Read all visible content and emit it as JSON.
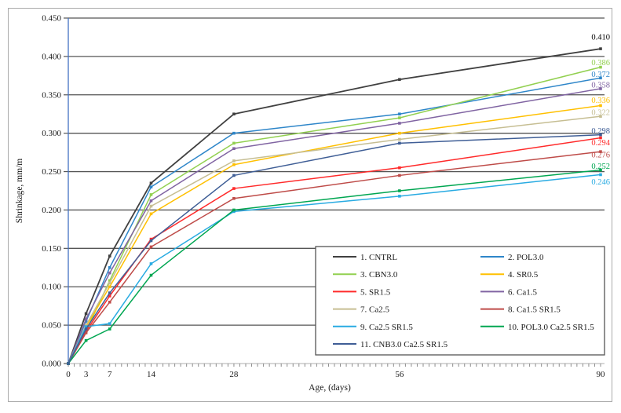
{
  "figure": {
    "description": "Line chart of drying shrinkage versus age for 11 concrete mixtures",
    "colors": {
      "figure_border": "#ABABAB",
      "gridline": "#555555",
      "y_axis_line": "#4472C4",
      "x_axis_line": "#BFBFBF",
      "tick_color": "#8C8C8C",
      "legend_border": "#555555",
      "text": "#1a1a1a"
    }
  },
  "chart_data": {
    "type": "line",
    "title": "",
    "xlabel": "Age, (days)",
    "ylabel": "Shrinkage, mm/m",
    "x": [
      0,
      3,
      7,
      14,
      28,
      56,
      90
    ],
    "xticks": [
      0,
      3,
      7,
      14,
      28,
      56,
      90
    ],
    "xlim": [
      0,
      90
    ],
    "ylim": [
      0.0,
      0.45
    ],
    "ytick_step": 0.05,
    "grid": "horizontal dark-gray gridlines every 0.050",
    "legend_position": "inside lower-right, 2 columns, bordered box",
    "series": [
      {
        "name": "1. CNTRL",
        "color": "#404040",
        "values": [
          0,
          0.065,
          0.14,
          0.235,
          0.325,
          0.37,
          0.41
        ],
        "end_label": "0.410"
      },
      {
        "name": "2. POL3.0",
        "color": "#2E86C9",
        "values": [
          0,
          0.055,
          0.125,
          0.23,
          0.3,
          0.325,
          0.372
        ],
        "end_label": "0.372"
      },
      {
        "name": "3. CBN3.0",
        "color": "#92D050",
        "values": [
          0,
          0.042,
          0.108,
          0.22,
          0.287,
          0.32,
          0.386
        ],
        "end_label": "0.386"
      },
      {
        "name": "4. SR0.5",
        "color": "#FFC000",
        "values": [
          0,
          0.048,
          0.1,
          0.195,
          0.259,
          0.3,
          0.336
        ],
        "end_label": "0.336"
      },
      {
        "name": "5. SR1.5",
        "color": "#FF2A2A",
        "values": [
          0,
          0.042,
          0.088,
          0.162,
          0.228,
          0.255,
          0.294
        ],
        "end_label": "0.294"
      },
      {
        "name": "6. Ca1.5",
        "color": "#8064A2",
        "values": [
          0,
          0.058,
          0.118,
          0.212,
          0.28,
          0.313,
          0.358
        ],
        "end_label": "0.358"
      },
      {
        "name": "7. Ca2.5",
        "color": "#C6BE93",
        "values": [
          0,
          0.05,
          0.105,
          0.205,
          0.264,
          0.292,
          0.322
        ],
        "end_label": "0.322"
      },
      {
        "name": "8. Ca1.5 SR1.5",
        "color": "#BE4B48",
        "values": [
          0,
          0.04,
          0.08,
          0.152,
          0.215,
          0.245,
          0.276
        ],
        "end_label": "0.276"
      },
      {
        "name": "9. Ca2.5 SR1.5",
        "color": "#29ABE2",
        "values": [
          0,
          0.048,
          0.052,
          0.13,
          0.198,
          0.218,
          0.246
        ],
        "end_label": "0.246"
      },
      {
        "name": "10. POL3.0 Ca2.5 SR1.5",
        "color": "#00A651",
        "values": [
          0,
          0.03,
          0.045,
          0.115,
          0.2,
          0.225,
          0.252
        ],
        "end_label": "0.252"
      },
      {
        "name": "11. CNB3.0 Ca2.5 SR1.5",
        "color": "#3F5E96",
        "values": [
          0,
          0.045,
          0.092,
          0.16,
          0.245,
          0.287,
          0.298
        ],
        "end_label": "0.298"
      }
    ]
  }
}
